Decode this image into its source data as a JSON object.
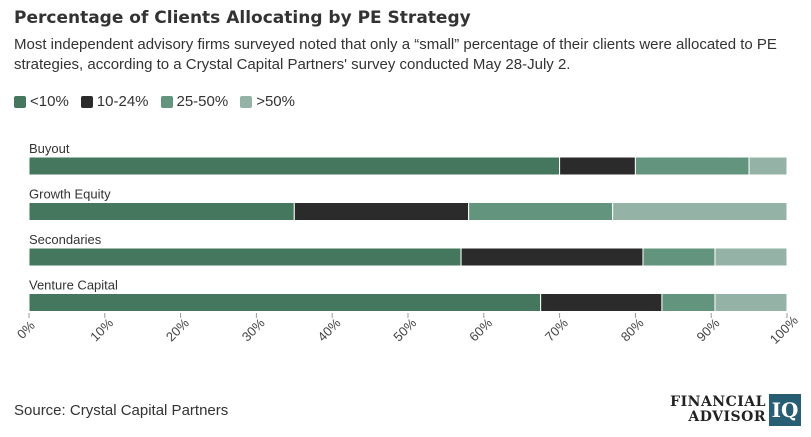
{
  "title": "Percentage of Clients Allocating by PE Strategy",
  "subtitle": "Most independent advisory firms surveyed noted that only a “small” percentage of their clients were allocated to PE strategies, according to a Crystal Capital Partners' survey conducted May 28-July 2.",
  "source": "Source: Crystal Capital Partners",
  "logo": {
    "line1": "FINANCIAL",
    "line2": "ADVISOR",
    "box": "IQ"
  },
  "colors": {
    "lt10": "#45775f",
    "10to24": "#2b2b2b",
    "25to50": "#63947e",
    "gt50": "#94b3a6",
    "logo": "#275e74"
  },
  "chart_data": {
    "type": "bar",
    "orientation": "horizontal",
    "stacked": true,
    "categories": [
      "Buyout",
      "Growth Equity",
      "Secondaries",
      "Venture Capital"
    ],
    "series": [
      {
        "name": "<10%",
        "values": [
          70,
          35,
          57,
          67.5
        ]
      },
      {
        "name": "10-24%",
        "values": [
          10,
          23,
          24,
          16
        ]
      },
      {
        "name": "25-50%",
        "values": [
          15,
          19,
          9.5,
          7
        ]
      },
      {
        "name": ">50%",
        "values": [
          5,
          23,
          9.5,
          9.5
        ]
      }
    ],
    "xlim": [
      0,
      100
    ],
    "x_ticks": [
      "0%",
      "10%",
      "20%",
      "30%",
      "40%",
      "50%",
      "60%",
      "70%",
      "80%",
      "90%",
      "100%"
    ],
    "legend_position": "top-left",
    "grid": false
  }
}
